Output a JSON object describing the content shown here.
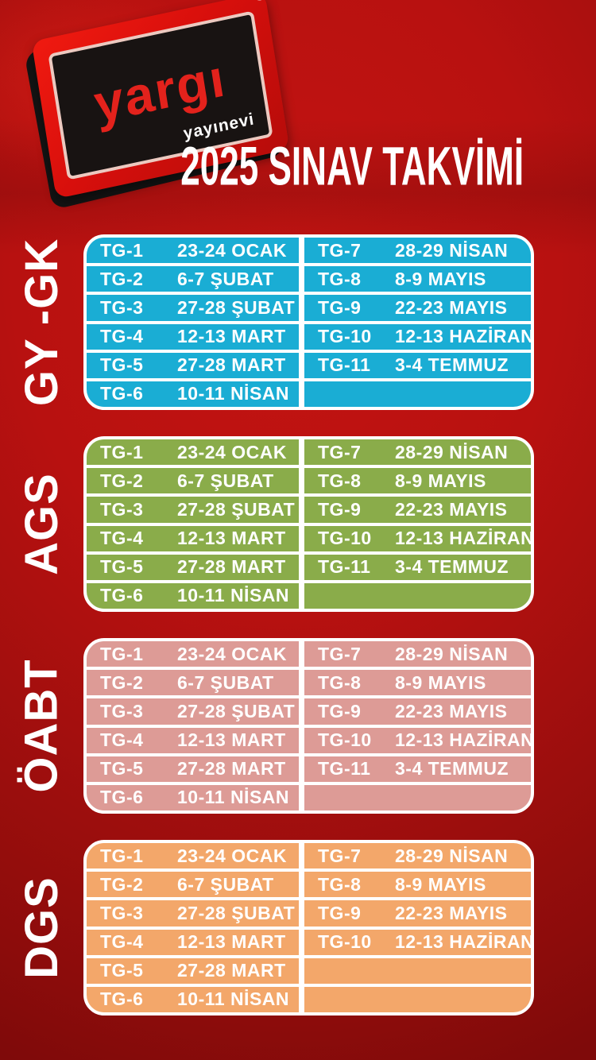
{
  "logo": {
    "brand": "yargı",
    "sub": "yayınevi",
    "registered": "®"
  },
  "title": "2025 SINAV TAKVİMİ",
  "colors": {
    "background_center": "#c41412",
    "background_edge": "#7f0a0a",
    "grid_lines": "#ffffff",
    "text": "#ffffff",
    "gy_gk": "#1aadd4",
    "ags": "#8aac4a",
    "oabt": "#dd9b96",
    "dgs": "#f3a76a"
  },
  "sections": [
    {
      "id": "gy-gk",
      "label": "GY -GK",
      "color": "#1aadd4",
      "rows": [
        {
          "left": {
            "tg": "TG-1",
            "date": "23-24 OCAK"
          },
          "right": {
            "tg": "TG-7",
            "date": "28-29 NİSAN"
          }
        },
        {
          "left": {
            "tg": "TG-2",
            "date": "6-7 ŞUBAT"
          },
          "right": {
            "tg": "TG-8",
            "date": "8-9 MAYIS"
          }
        },
        {
          "left": {
            "tg": "TG-3",
            "date": "27-28 ŞUBAT"
          },
          "right": {
            "tg": "TG-9",
            "date": "22-23 MAYIS"
          }
        },
        {
          "left": {
            "tg": "TG-4",
            "date": "12-13 MART"
          },
          "right": {
            "tg": "TG-10",
            "date": "12-13 HAZİRAN"
          }
        },
        {
          "left": {
            "tg": "TG-5",
            "date": "27-28 MART"
          },
          "right": {
            "tg": "TG-11",
            "date": "3-4 TEMMUZ"
          }
        },
        {
          "left": {
            "tg": "TG-6",
            "date": "10-11 NİSAN"
          },
          "right": {
            "tg": "",
            "date": ""
          }
        }
      ]
    },
    {
      "id": "ags",
      "label": "AGS",
      "color": "#8aac4a",
      "rows": [
        {
          "left": {
            "tg": "TG-1",
            "date": "23-24 OCAK"
          },
          "right": {
            "tg": "TG-7",
            "date": "28-29 NİSAN"
          }
        },
        {
          "left": {
            "tg": "TG-2",
            "date": "6-7 ŞUBAT"
          },
          "right": {
            "tg": "TG-8",
            "date": "8-9 MAYIS"
          }
        },
        {
          "left": {
            "tg": "TG-3",
            "date": "27-28 ŞUBAT"
          },
          "right": {
            "tg": "TG-9",
            "date": "22-23 MAYIS"
          }
        },
        {
          "left": {
            "tg": "TG-4",
            "date": "12-13 MART"
          },
          "right": {
            "tg": "TG-10",
            "date": "12-13 HAZİRAN"
          }
        },
        {
          "left": {
            "tg": "TG-5",
            "date": "27-28 MART"
          },
          "right": {
            "tg": "TG-11",
            "date": "3-4 TEMMUZ"
          }
        },
        {
          "left": {
            "tg": "TG-6",
            "date": "10-11 NİSAN"
          },
          "right": {
            "tg": "",
            "date": ""
          }
        }
      ]
    },
    {
      "id": "oabt",
      "label": "ÖABT",
      "color": "#dd9b96",
      "rows": [
        {
          "left": {
            "tg": "TG-1",
            "date": "23-24 OCAK"
          },
          "right": {
            "tg": "TG-7",
            "date": "28-29 NİSAN"
          }
        },
        {
          "left": {
            "tg": "TG-2",
            "date": "6-7 ŞUBAT"
          },
          "right": {
            "tg": "TG-8",
            "date": "8-9 MAYIS"
          }
        },
        {
          "left": {
            "tg": "TG-3",
            "date": "27-28 ŞUBAT"
          },
          "right": {
            "tg": "TG-9",
            "date": "22-23 MAYIS"
          }
        },
        {
          "left": {
            "tg": "TG-4",
            "date": "12-13 MART"
          },
          "right": {
            "tg": "TG-10",
            "date": "12-13 HAZİRAN"
          }
        },
        {
          "left": {
            "tg": "TG-5",
            "date": "27-28 MART"
          },
          "right": {
            "tg": "TG-11",
            "date": "3-4 TEMMUZ"
          }
        },
        {
          "left": {
            "tg": "TG-6",
            "date": "10-11 NİSAN"
          },
          "right": {
            "tg": "",
            "date": ""
          }
        }
      ]
    },
    {
      "id": "dgs",
      "label": "DGS",
      "color": "#f3a76a",
      "rows": [
        {
          "left": {
            "tg": "TG-1",
            "date": "23-24 OCAK"
          },
          "right": {
            "tg": "TG-7",
            "date": "28-29 NİSAN"
          }
        },
        {
          "left": {
            "tg": "TG-2",
            "date": "6-7 ŞUBAT"
          },
          "right": {
            "tg": "TG-8",
            "date": "8-9 MAYIS"
          }
        },
        {
          "left": {
            "tg": "TG-3",
            "date": "27-28 ŞUBAT"
          },
          "right": {
            "tg": "TG-9",
            "date": "22-23 MAYIS"
          }
        },
        {
          "left": {
            "tg": "TG-4",
            "date": "12-13 MART"
          },
          "right": {
            "tg": "TG-10",
            "date": "12-13 HAZİRAN"
          }
        },
        {
          "left": {
            "tg": "TG-5",
            "date": "27-28 MART"
          },
          "right": {
            "tg": "",
            "date": ""
          }
        },
        {
          "left": {
            "tg": "TG-6",
            "date": "10-11 NİSAN"
          },
          "right": {
            "tg": "",
            "date": ""
          }
        }
      ]
    }
  ]
}
